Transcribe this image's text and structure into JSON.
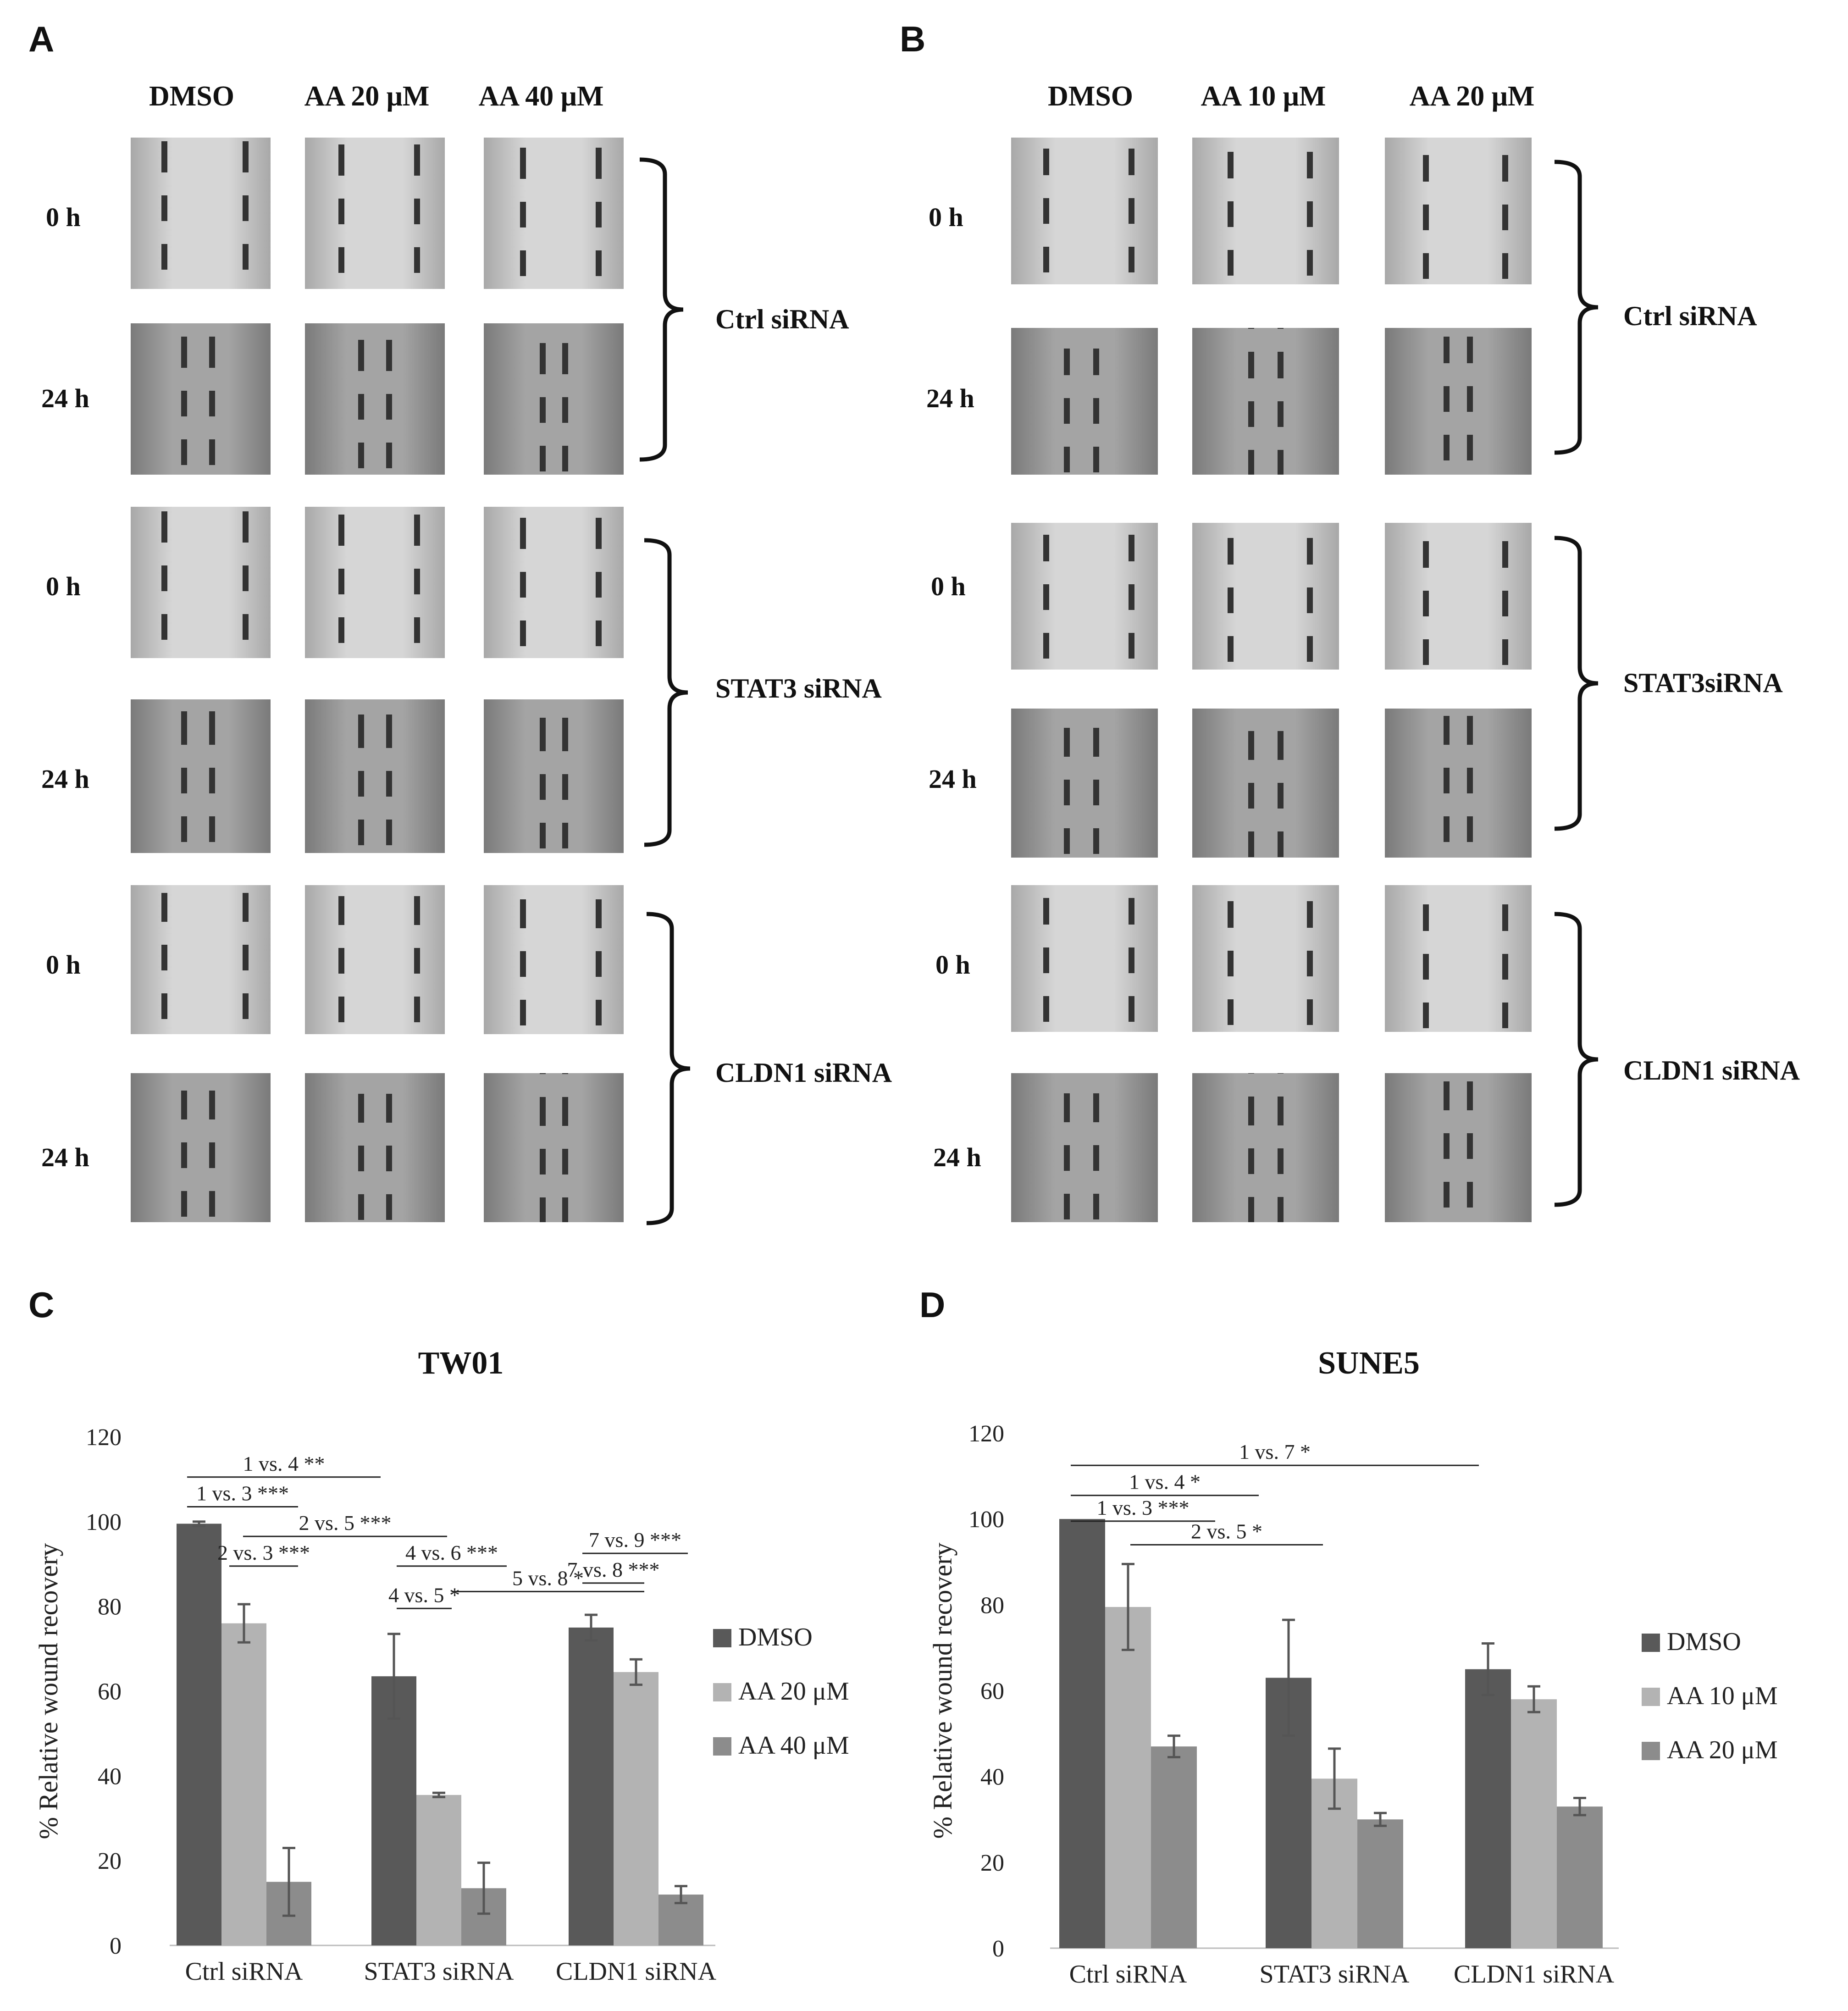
{
  "panels": {
    "A": {
      "letter": "A",
      "columns": [
        "DMSO",
        "AA 20 μM",
        "AA 40 μM"
      ],
      "groups": [
        {
          "name": "Ctrl siRNA",
          "rows": [
            "0 h",
            "24 h"
          ]
        },
        {
          "name": "STAT3 siRNA",
          "rows": [
            "0 h",
            "24 h"
          ]
        },
        {
          "name": "CLDN1 siRNA",
          "rows": [
            "0 h",
            "24 h"
          ]
        }
      ]
    },
    "B": {
      "letter": "B",
      "columns": [
        "DMSO",
        "AA 10 μM",
        "AA 20 μM"
      ],
      "groups": [
        {
          "name": "Ctrl siRNA",
          "rows": [
            "0 h",
            "24 h"
          ]
        },
        {
          "name": "STAT3siRNA",
          "rows": [
            "0 h",
            "24 h"
          ]
        },
        {
          "name": "CLDN1 siRNA",
          "rows": [
            "0 h",
            "24 h"
          ]
        }
      ]
    },
    "C": {
      "letter": "C"
    },
    "D": {
      "letter": "D"
    }
  },
  "chart_data": [
    {
      "type": "bar",
      "title": "TW01",
      "ylabel": "% Relative wound recovery",
      "xlabel": "",
      "ylim": [
        0,
        120
      ],
      "yticks": [
        0,
        20,
        40,
        60,
        80,
        100,
        120
      ],
      "categories": [
        "Ctrl siRNA",
        "STAT3 siRNA",
        "CLDN1 siRNA"
      ],
      "series": [
        {
          "name": "DMSO",
          "color": "#595959",
          "values": [
            99.5,
            63.5,
            75
          ],
          "errors": [
            0.5,
            10,
            3
          ]
        },
        {
          "name": "AA 20 μM",
          "color": "#b3b3b3",
          "values": [
            76,
            35.5,
            64.5
          ],
          "errors": [
            4.5,
            0.5,
            3
          ]
        },
        {
          "name": "AA 40 μM",
          "color": "#8c8c8c",
          "values": [
            15,
            13.5,
            12
          ],
          "errors": [
            8,
            6,
            2
          ]
        }
      ],
      "legend_position": "right",
      "annotations": [
        "1 vs. 4 **",
        "1 vs. 3 ***",
        "2 vs. 5 ***",
        "2 vs. 3 ***",
        "4 vs. 6 ***",
        "4 vs. 5 *",
        "5 vs. 8 *",
        "7 vs. 8 ***",
        "7 vs. 9 ***"
      ]
    },
    {
      "type": "bar",
      "title": "SUNE5",
      "ylabel": "% Relative wound recovery",
      "xlabel": "",
      "ylim": [
        0,
        120
      ],
      "yticks": [
        0,
        20,
        40,
        60,
        80,
        100,
        120
      ],
      "categories": [
        "Ctrl siRNA",
        "STAT3 siRNA",
        "CLDN1 siRNA"
      ],
      "series": [
        {
          "name": "DMSO",
          "color": "#595959",
          "values": [
            100,
            63,
            65
          ],
          "errors": [
            0,
            13.5,
            6
          ]
        },
        {
          "name": "AA 10 μM",
          "color": "#b3b3b3",
          "values": [
            79.5,
            39.5,
            58
          ],
          "errors": [
            10,
            7,
            3
          ]
        },
        {
          "name": "AA 20 μM",
          "color": "#8c8c8c",
          "values": [
            47,
            30,
            33
          ],
          "errors": [
            2.5,
            1.5,
            2
          ]
        }
      ],
      "legend_position": "right",
      "annotations": [
        "1 vs.  7 *",
        "1 vs. 4 *",
        "1 vs. 3 ***",
        "2 vs. 5 *"
      ]
    }
  ]
}
